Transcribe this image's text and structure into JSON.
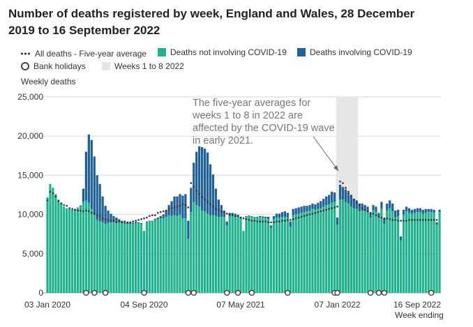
{
  "title": "Number of deaths registered by week, England and Wales, 28 December 2019 to 16 September 2022",
  "legend": {
    "average": "All deaths - Five-year average",
    "not_covid": "Deaths not involving COVID-19",
    "covid": "Deaths involving COVID-19",
    "bank_holidays": "Bank holidays",
    "weeks_1_8": "Weeks 1 to 8 2022"
  },
  "annotation": "The five-year averages for weeks 1 to 8 in 2022 are affected by the COVID-19 wave in early 2021.",
  "colors": {
    "not_covid": "#22b28f",
    "covid": "#206095",
    "average": "#333333",
    "highlight": "#e6e6e6",
    "grid": "#d9d9d9"
  },
  "chart_data": {
    "type": "bar",
    "stacked": true,
    "ylabel": "Weekly deaths",
    "xlabel": "Week ending",
    "ylim": [
      0,
      25000
    ],
    "yticks": [
      0,
      5000,
      10000,
      15000,
      20000,
      25000
    ],
    "ytick_labels": [
      "0",
      "5,000",
      "10,000",
      "15,000",
      "20,000",
      "25,000"
    ],
    "xtick_labels": [
      "03 Jan 2020",
      "04 Sep 2020",
      "07 May 2021",
      "07 Jan 2022",
      "16 Sep 2022"
    ],
    "xtick_weeks": [
      1,
      36,
      71,
      106,
      142
    ],
    "highlight_weeks": [
      106,
      113
    ],
    "bank_holiday_weeks": [
      15,
      18,
      22,
      36,
      52,
      54,
      66,
      70,
      75,
      88,
      105,
      106,
      118,
      121,
      123,
      140
    ],
    "not_covid": [
      12200,
      13900,
      13400,
      12600,
      11900,
      11500,
      11000,
      10800,
      10700,
      10600,
      10700,
      10900,
      11000,
      11600,
      11800,
      11500,
      10700,
      10000,
      9300,
      9100,
      9000,
      8800,
      8900,
      9000,
      9000,
      9000,
      9000,
      8900,
      8800,
      8800,
      8800,
      8800,
      8900,
      8900,
      8800,
      7800,
      9000,
      9100,
      9100,
      9300,
      9400,
      9500,
      9500,
      9700,
      9900,
      9800,
      9900,
      9800,
      10000,
      9500,
      9500,
      6900,
      10300,
      11600,
      11200,
      11000,
      10500,
      10400,
      10100,
      9900,
      9900,
      9800,
      9700,
      9700,
      9700,
      8600,
      9800,
      9900,
      9900,
      9800,
      9600,
      7800,
      9700,
      9800,
      9700,
      9600,
      9600,
      9700,
      9600,
      9500,
      9400,
      8300,
      9400,
      9600,
      9600,
      9700,
      9700,
      9600,
      8400,
      9900,
      10000,
      10100,
      10200,
      10300,
      10400,
      10500,
      10700,
      10600,
      10700,
      10800,
      11000,
      11200,
      11300,
      11500,
      11600,
      8700,
      11900,
      11900,
      11600,
      11400,
      11000,
      10800,
      10700,
      10400,
      10500,
      10400,
      10300,
      9600,
      10500,
      10300,
      9600,
      10700,
      8800,
      10500,
      10800,
      10400,
      9600,
      9800,
      6700,
      10000,
      10400,
      10200,
      10100,
      10200,
      10300,
      10300,
      10100,
      10200,
      10300,
      10300,
      10200,
      8700,
      10300
    ],
    "covid": [
      0,
      0,
      0,
      0,
      0,
      0,
      0,
      0,
      0,
      0,
      0,
      0,
      150,
      1700,
      6200,
      8700,
      8800,
      7400,
      5700,
      4800,
      3300,
      2300,
      1600,
      1100,
      800,
      600,
      400,
      300,
      200,
      200,
      150,
      150,
      150,
      100,
      100,
      80,
      100,
      100,
      100,
      150,
      200,
      300,
      500,
      800,
      1300,
      1900,
      2400,
      2500,
      2600,
      2900,
      3100,
      2300,
      3100,
      5000,
      6800,
      7700,
      8100,
      8000,
      7800,
      6500,
      5200,
      3500,
      2200,
      1500,
      800,
      500,
      400,
      300,
      200,
      150,
      100,
      80,
      80,
      80,
      80,
      80,
      100,
      100,
      150,
      200,
      300,
      300,
      400,
      500,
      500,
      600,
      700,
      600,
      700,
      800,
      800,
      800,
      800,
      800,
      700,
      700,
      700,
      700,
      800,
      900,
      1000,
      1100,
      1200,
      1400,
      1200,
      900,
      1900,
      1600,
      1600,
      1400,
      1400,
      1200,
      1100,
      1000,
      900,
      800,
      700,
      600,
      700,
      700,
      600,
      900,
      700,
      900,
      1000,
      1000,
      900,
      800,
      500,
      600,
      600,
      600,
      500,
      500,
      500,
      500,
      500,
      500,
      400,
      400,
      400,
      300,
      300
    ],
    "average": [
      11800,
      12900,
      12700,
      12300,
      11700,
      11400,
      11200,
      11100,
      10800,
      10700,
      10600,
      10500,
      10500,
      10400,
      10500,
      10400,
      10200,
      10100,
      9900,
      9800,
      9500,
      9400,
      9300,
      9200,
      9200,
      9000,
      9100,
      9000,
      9100,
      9000,
      9000,
      9100,
      9200,
      9300,
      9400,
      9500,
      9600,
      9800,
      9900,
      9900,
      10200,
      10300,
      10400,
      10500,
      10700,
      10800,
      10900,
      11000,
      11100,
      11300,
      11200,
      10900,
      14000,
      13500,
      13000,
      12600,
      12200,
      11900,
      11600,
      11300,
      11000,
      10700,
      10600,
      10400,
      10300,
      10100,
      10000,
      9900,
      9800,
      9800,
      9600,
      9500,
      9400,
      9300,
      9200,
      9200,
      9100,
      9100,
      9100,
      9100,
      9000,
      9000,
      9000,
      9100,
      9100,
      9200,
      9200,
      9300,
      9300,
      9400,
      9500,
      9600,
      9700,
      9800,
      9900,
      10000,
      10100,
      10200,
      10300,
      10400,
      10500,
      10600,
      10700,
      10800,
      10900,
      11000,
      14200,
      14000,
      13400,
      12900,
      12400,
      11900,
      11500,
      11200,
      10800,
      10600,
      10400,
      10200,
      10100,
      9900,
      9700,
      9600,
      9500,
      9500,
      9400,
      9300,
      9300,
      9200,
      9200,
      9200,
      9200,
      9300,
      9300,
      9300,
      9300,
      9300,
      9300,
      9300,
      9300,
      9300,
      9300,
      9300
    ]
  }
}
